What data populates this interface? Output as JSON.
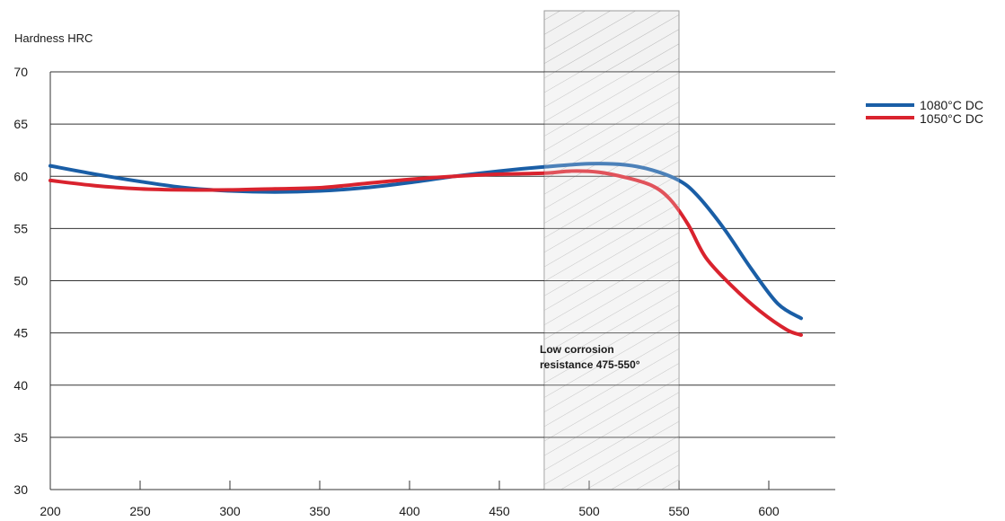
{
  "chart_data": {
    "type": "line",
    "ylabel": "Hardness HRC",
    "xlabel": "",
    "xlim": [
      200,
      630
    ],
    "ylim": [
      30,
      70
    ],
    "x_ticks": [
      200,
      250,
      300,
      350,
      400,
      450,
      500,
      550,
      600
    ],
    "y_ticks": [
      30,
      35,
      40,
      45,
      50,
      55,
      60,
      65,
      70
    ],
    "grid": "horizontal",
    "legend_position": "top-right",
    "annotation": {
      "text_lines": [
        "Low corrosion",
        "resistance 475-550°"
      ],
      "x_range": [
        475,
        550
      ]
    },
    "series": [
      {
        "name": "1080°C DC",
        "color": "#1a5ea6",
        "x": [
          200,
          225,
          250,
          275,
          300,
          325,
          350,
          375,
          400,
          425,
          450,
          475,
          500,
          520,
          535,
          550,
          560,
          575,
          590,
          605,
          618
        ],
        "y": [
          61.0,
          60.2,
          59.5,
          58.9,
          58.6,
          58.5,
          58.6,
          58.9,
          59.4,
          60.0,
          60.5,
          60.9,
          61.2,
          61.1,
          60.6,
          59.6,
          58.2,
          55.0,
          51.2,
          47.8,
          46.4
        ]
      },
      {
        "name": "1050°C DC",
        "color": "#d9232e",
        "x": [
          200,
          225,
          250,
          275,
          300,
          325,
          350,
          375,
          400,
          425,
          450,
          475,
          490,
          505,
          520,
          535,
          545,
          555,
          565,
          580,
          595,
          610,
          618
        ],
        "y": [
          59.6,
          59.1,
          58.8,
          58.7,
          58.7,
          58.8,
          58.9,
          59.3,
          59.7,
          60.0,
          60.2,
          60.3,
          60.5,
          60.4,
          59.9,
          59.1,
          57.8,
          55.4,
          52.2,
          49.4,
          47.1,
          45.3,
          44.8
        ]
      }
    ]
  }
}
